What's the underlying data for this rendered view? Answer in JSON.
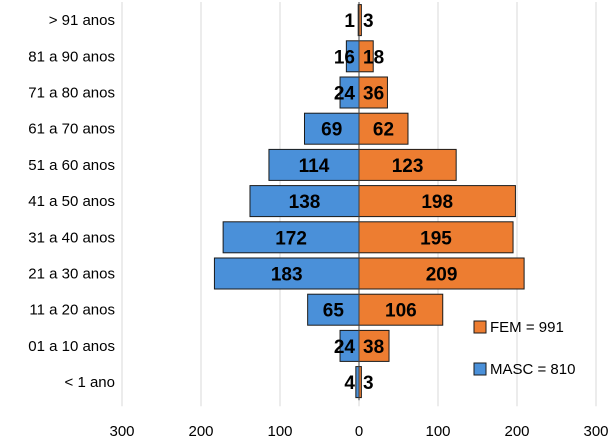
{
  "chart_data": {
    "type": "bar",
    "orientation": "horizontal",
    "layout": "population-pyramid",
    "categories": [
      "> 91 anos",
      "81 a 90 anos",
      "71 a 80 anos",
      "61 a 70 anos",
      "51 a 60 anos",
      "41 a 50 anos",
      "31 a 40 anos",
      "21 a 30 anos",
      "11 a 20 anos",
      "01 a 10 anos",
      "< 1 ano"
    ],
    "series": [
      {
        "name": "MASC = 810",
        "side": "left",
        "color": "#4a90d9",
        "values": [
          1,
          16,
          24,
          69,
          114,
          138,
          172,
          183,
          65,
          24,
          4
        ]
      },
      {
        "name": "FEM = 991",
        "side": "right",
        "color": "#ed7d31",
        "values": [
          3,
          18,
          36,
          62,
          123,
          198,
          195,
          209,
          106,
          38,
          3
        ]
      }
    ],
    "xlim": [
      -300,
      300
    ],
    "x_ticks": [
      -300,
      -200,
      -100,
      0,
      100,
      200,
      300
    ],
    "x_tick_labels": [
      "300",
      "200",
      "100",
      "0",
      "100",
      "200",
      "300"
    ],
    "grid": "vertical",
    "legend_position": "bottom-right"
  }
}
